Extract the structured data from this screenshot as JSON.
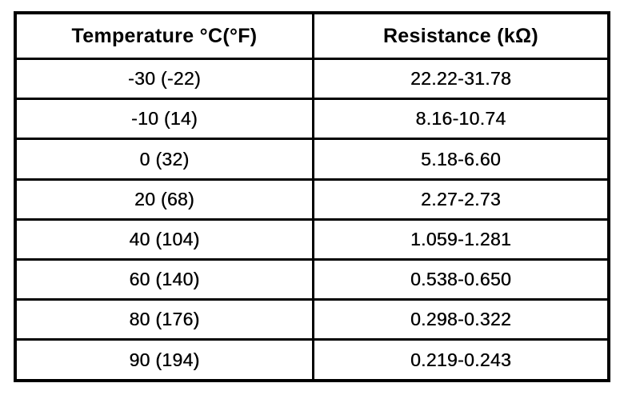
{
  "table": {
    "headers": {
      "temperature": "Temperature °C(°F)",
      "resistance": "Resistance (kΩ)"
    },
    "rows": [
      {
        "temperature": "-30 (-22)",
        "resistance": "22.22-31.78"
      },
      {
        "temperature": "-10 (14)",
        "resistance": "8.16-10.74"
      },
      {
        "temperature": "0 (32)",
        "resistance": "5.18-6.60"
      },
      {
        "temperature": "20 (68)",
        "resistance": "2.27-2.73"
      },
      {
        "temperature": "40 (104)",
        "resistance": "1.059-1.281"
      },
      {
        "temperature": "60 (140)",
        "resistance": "0.538-0.650"
      },
      {
        "temperature": "80 (176)",
        "resistance": "0.298-0.322"
      },
      {
        "temperature": "90 (194)",
        "resistance": "0.219-0.243"
      }
    ]
  },
  "colors": {
    "background": "#ffffff",
    "border": "#000000",
    "text": "#000000"
  }
}
